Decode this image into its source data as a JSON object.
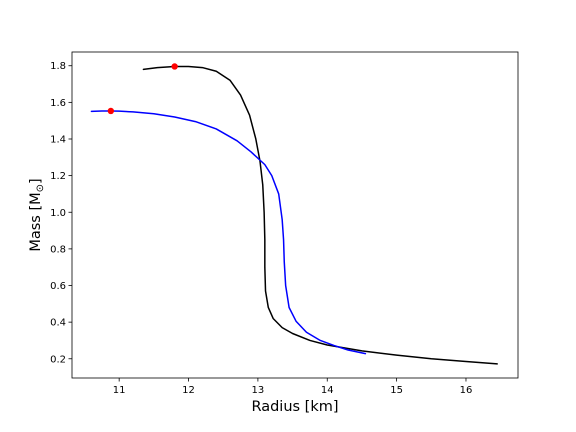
{
  "chart_data": {
    "type": "line",
    "title": "",
    "xlabel": "Radius [km]",
    "ylabel_main": "Mass [M",
    "ylabel_sub": "⊙",
    "ylabel_end": "]",
    "xlim": [
      10.32,
      16.75
    ],
    "ylim": [
      0.095,
      1.875
    ],
    "xticks": [
      11,
      12,
      13,
      14,
      15,
      16
    ],
    "yticks": [
      0.2,
      0.4,
      0.6,
      0.8,
      1.0,
      1.2,
      1.4,
      1.6,
      1.8
    ],
    "ytick_labels": [
      "0.2",
      "0.4",
      "0.6",
      "0.8",
      "1.0",
      "1.2",
      "1.4",
      "1.6",
      "1.8"
    ],
    "grid": false,
    "legend": "none",
    "series": [
      {
        "color": "#000000",
        "points": [
          [
            11.35,
            1.78
          ],
          [
            11.55,
            1.79
          ],
          [
            11.8,
            1.796
          ],
          [
            12.0,
            1.796
          ],
          [
            12.2,
            1.79
          ],
          [
            12.4,
            1.77
          ],
          [
            12.6,
            1.72
          ],
          [
            12.75,
            1.64
          ],
          [
            12.88,
            1.53
          ],
          [
            12.97,
            1.4
          ],
          [
            13.03,
            1.28
          ],
          [
            13.07,
            1.15
          ],
          [
            13.09,
            1.0
          ],
          [
            13.1,
            0.85
          ],
          [
            13.1,
            0.7
          ],
          [
            13.11,
            0.57
          ],
          [
            13.15,
            0.48
          ],
          [
            13.22,
            0.42
          ],
          [
            13.35,
            0.37
          ],
          [
            13.5,
            0.338
          ],
          [
            13.75,
            0.3
          ],
          [
            14.0,
            0.275
          ],
          [
            14.5,
            0.243
          ],
          [
            15.0,
            0.22
          ],
          [
            15.5,
            0.2
          ],
          [
            16.0,
            0.185
          ],
          [
            16.45,
            0.172
          ]
        ]
      },
      {
        "color": "#0000ff",
        "points": [
          [
            10.6,
            1.551
          ],
          [
            10.75,
            1.553
          ],
          [
            10.88,
            1.553
          ],
          [
            11.0,
            1.552
          ],
          [
            11.2,
            1.548
          ],
          [
            11.5,
            1.538
          ],
          [
            11.8,
            1.52
          ],
          [
            12.1,
            1.495
          ],
          [
            12.4,
            1.455
          ],
          [
            12.7,
            1.39
          ],
          [
            12.9,
            1.33
          ],
          [
            13.1,
            1.26
          ],
          [
            13.2,
            1.2
          ],
          [
            13.3,
            1.1
          ],
          [
            13.35,
            0.96
          ],
          [
            13.37,
            0.85
          ],
          [
            13.38,
            0.73
          ],
          [
            13.4,
            0.6
          ],
          [
            13.45,
            0.48
          ],
          [
            13.55,
            0.405
          ],
          [
            13.7,
            0.345
          ],
          [
            13.9,
            0.3
          ],
          [
            14.1,
            0.272
          ],
          [
            14.3,
            0.248
          ],
          [
            14.55,
            0.228
          ]
        ]
      }
    ],
    "markers": [
      {
        "x": 11.8,
        "y": 1.796,
        "color": "#ff0000"
      },
      {
        "x": 10.88,
        "y": 1.553,
        "color": "#ff0000"
      }
    ]
  }
}
